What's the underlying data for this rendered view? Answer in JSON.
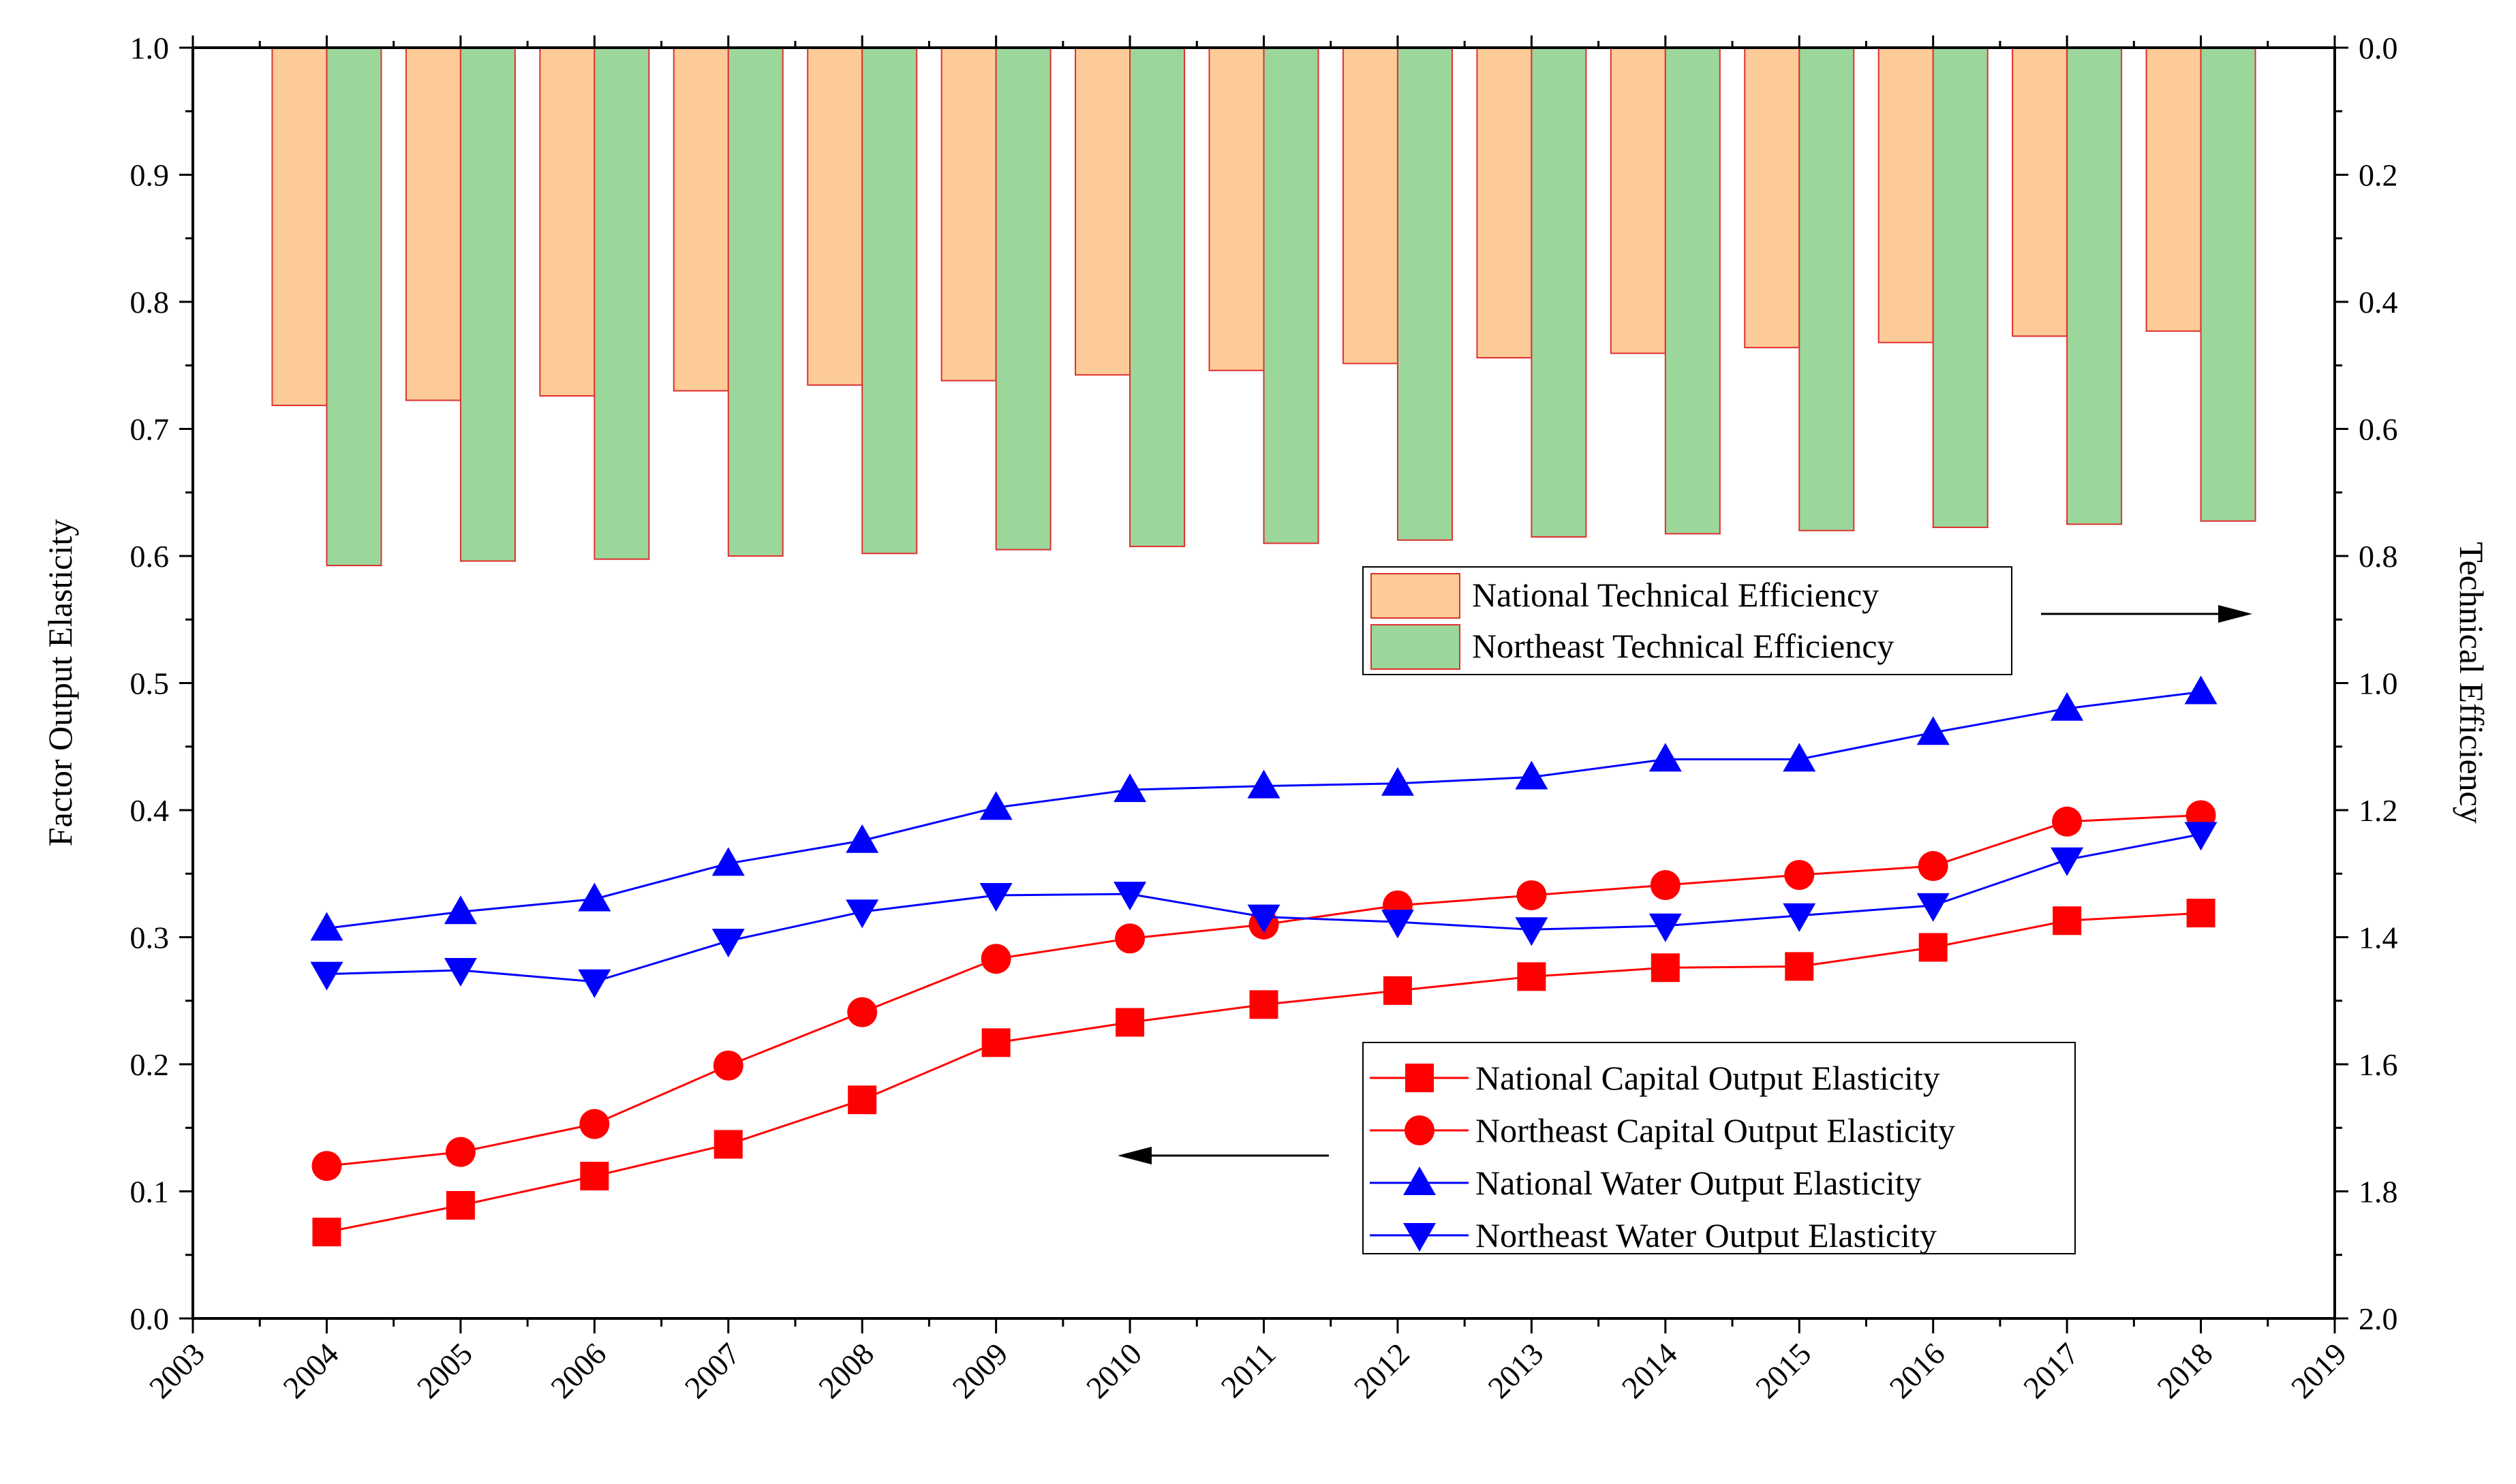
{
  "chart_data": {
    "type": "bar+line",
    "x_axis": {
      "range": [
        2003,
        2019
      ],
      "tick_labels": [
        "2003",
        "2004",
        "2005",
        "2006",
        "2007",
        "2008",
        "2009",
        "2010",
        "2011",
        "2012",
        "2013",
        "2014",
        "2015",
        "2016",
        "2017",
        "2018",
        "2019"
      ]
    },
    "y_left": {
      "title": "Factor Output Elasticity",
      "range": [
        0.0,
        1.0
      ],
      "tick_labels": [
        "0.0",
        "0.1",
        "0.2",
        "0.3",
        "0.4",
        "0.5",
        "0.6",
        "0.7",
        "0.8",
        "0.9",
        "1.0"
      ]
    },
    "y_right": {
      "title": "Technical Efficiency",
      "range_top_to_bottom": [
        0.0,
        2.0
      ],
      "inverted": true,
      "tick_labels": [
        "0.0",
        "0.2",
        "0.4",
        "0.6",
        "0.8",
        "1.0",
        "1.2",
        "1.4",
        "1.6",
        "1.8",
        "2.0"
      ]
    },
    "years": [
      2004,
      2005,
      2006,
      2007,
      2008,
      2009,
      2010,
      2011,
      2012,
      2013,
      2014,
      2015,
      2016,
      2017,
      2018
    ],
    "bar_series": [
      {
        "name": "National Technical Efficiency",
        "axis": "right",
        "fill": "#FCCB98",
        "stroke": "#E03030",
        "values": [
          0.563,
          0.555,
          0.548,
          0.54,
          0.531,
          0.524,
          0.515,
          0.508,
          0.497,
          0.488,
          0.481,
          0.472,
          0.464,
          0.454,
          0.446
        ]
      },
      {
        "name": "Northeast Technical Efficiency",
        "axis": "right",
        "fill": "#9BD79B",
        "stroke": "#E03030",
        "values": [
          0.815,
          0.808,
          0.805,
          0.8,
          0.796,
          0.79,
          0.785,
          0.78,
          0.775,
          0.77,
          0.765,
          0.76,
          0.755,
          0.75,
          0.745
        ]
      }
    ],
    "line_series": [
      {
        "name": "National Capital Output Elasticity",
        "axis": "left",
        "marker": "square",
        "color": "#FF0000",
        "values": [
          0.068,
          0.089,
          0.112,
          0.137,
          0.172,
          0.217,
          0.233,
          0.247,
          0.258,
          0.269,
          0.276,
          0.277,
          0.292,
          0.313,
          0.319
        ]
      },
      {
        "name": "Northeast Capital Output Elasticity",
        "axis": "left",
        "marker": "circle",
        "color": "#FF0000",
        "values": [
          0.12,
          0.131,
          0.153,
          0.199,
          0.241,
          0.283,
          0.299,
          0.31,
          0.325,
          0.333,
          0.341,
          0.349,
          0.356,
          0.391,
          0.396
        ]
      },
      {
        "name": "National Water Output Elasticity",
        "axis": "left",
        "marker": "triangle-up",
        "color": "#0000FF",
        "values": [
          0.307,
          0.32,
          0.33,
          0.358,
          0.376,
          0.402,
          0.416,
          0.419,
          0.421,
          0.426,
          0.44,
          0.44,
          0.461,
          0.48,
          0.493
        ]
      },
      {
        "name": "Northeast Water Output Elasticity",
        "axis": "left",
        "marker": "triangle-down",
        "color": "#0000FF",
        "values": [
          0.271,
          0.274,
          0.265,
          0.297,
          0.32,
          0.333,
          0.334,
          0.316,
          0.312,
          0.306,
          0.309,
          0.317,
          0.325,
          0.361,
          0.381
        ]
      }
    ],
    "legend_bars": [
      "National Technical Efficiency",
      "Northeast Technical Efficiency"
    ],
    "legend_lines": [
      "National Capital Output Elasticity",
      "Northeast Capital Output Elasticity",
      "National Water Output Elasticity",
      "Northeast Water Output Elasticity"
    ],
    "annotations": {
      "bars_arrow_direction": "right",
      "lines_arrow_direction": "left"
    }
  }
}
